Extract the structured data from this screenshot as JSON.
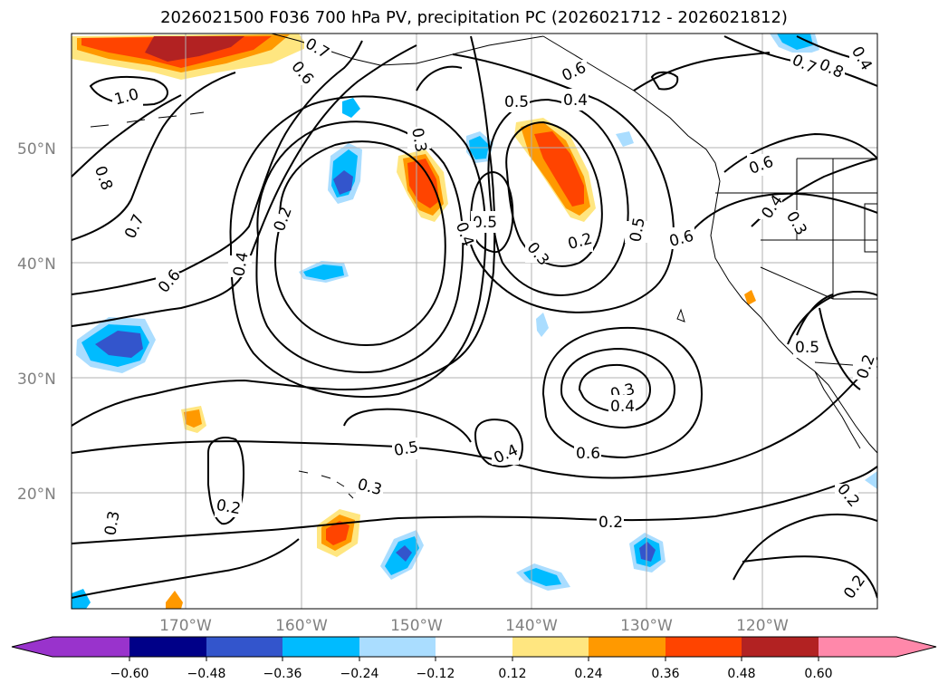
{
  "title": "2026021500 F036 700 hPa PV, precipitation PC (2026021712 - 2026021812)",
  "lat_labels": [
    "50°N",
    "40°N",
    "30°N",
    "20°N"
  ],
  "lon_labels": [
    "170°W",
    "160°W",
    "150°W",
    "140°W",
    "130°W",
    "120°W"
  ],
  "colorbar": {
    "ticks": [
      "−0.60",
      "−0.48",
      "−0.36",
      "−0.24",
      "−0.12",
      "0.12",
      "0.24",
      "0.36",
      "0.48",
      "0.60"
    ],
    "colors": [
      "#9933cc",
      "#000088",
      "#3355cc",
      "#00bbff",
      "#aaddff",
      "#ffffff",
      "#ffe680",
      "#ff9900",
      "#ff4400",
      "#b22222",
      "#ff88aa"
    ]
  },
  "contour_labels": {
    "c1": "0.8",
    "c2": "0.7",
    "c3": "0.6",
    "c4": "0.2",
    "c5": "0.4",
    "c6": "0.3",
    "c7": "0.5",
    "c8": "0.4",
    "c9": "0.5",
    "c10": "0.4",
    "c11": "0.3",
    "c12": "0.2",
    "c13": "0.5",
    "c14": "0.6",
    "c15": "0.6",
    "c16": "0.4",
    "c17": "0.3",
    "c18": "0.5",
    "c19": "0.2",
    "c20": "0.3",
    "c21": "0.4",
    "c22": "0.6",
    "c23": "0.4",
    "c24": "0.5",
    "c25": "0.3",
    "c26": "0.2",
    "c27": "0.3",
    "c28": "0.2",
    "c29": "0.2",
    "c30": "0.2",
    "c31": "1.0",
    "c32": "0.6",
    "c33": "0.7",
    "c34": "0.8",
    "c35": "0.4",
    "c36": "0.6",
    "c37": "0.7"
  }
}
